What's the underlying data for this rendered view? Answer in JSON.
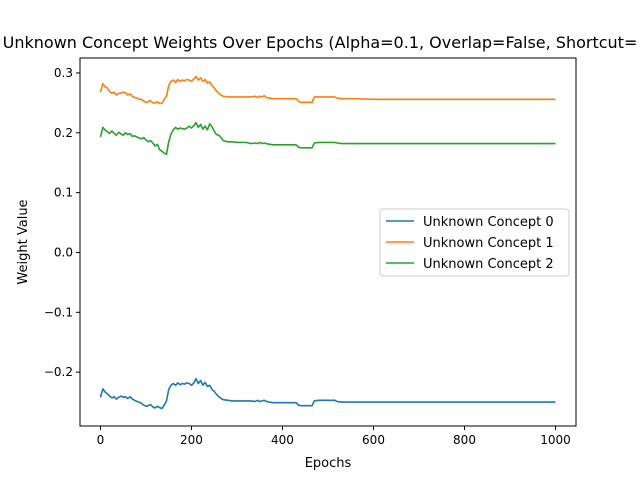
{
  "chart_data": {
    "type": "line",
    "title": "Unknown Concept Weights Over Epochs (Alpha=0.1, Overlap=False, Shortcut=",
    "xlabel": "Epochs",
    "ylabel": "Weight Value",
    "xlim": [
      -45,
      1045
    ],
    "ylim": [
      -0.29,
      0.325
    ],
    "xticks": [
      0,
      200,
      400,
      600,
      800,
      1000
    ],
    "yticks": [
      -0.2,
      -0.1,
      0.0,
      0.1,
      0.2,
      0.3
    ],
    "ytick_labels": [
      "−0.2",
      "−0.1",
      "0.0",
      "0.1",
      "0.2",
      "0.3"
    ],
    "grid": false,
    "legend": "center-right",
    "series": [
      {
        "name": "Unknown Concept 0",
        "color": "#1f77b4",
        "x": [
          0,
          5,
          10,
          15,
          20,
          25,
          30,
          35,
          40,
          45,
          50,
          55,
          60,
          65,
          70,
          75,
          80,
          85,
          90,
          95,
          100,
          105,
          110,
          115,
          120,
          125,
          130,
          135,
          140,
          145,
          150,
          155,
          160,
          165,
          170,
          175,
          180,
          185,
          190,
          195,
          200,
          205,
          210,
          215,
          220,
          225,
          230,
          235,
          240,
          245,
          250,
          255,
          260,
          265,
          270,
          280,
          290,
          300,
          310,
          320,
          330,
          340,
          345,
          350,
          355,
          360,
          365,
          370,
          380,
          390,
          400,
          410,
          420,
          430,
          435,
          440,
          450,
          460,
          465,
          470,
          480,
          490,
          500,
          510,
          515,
          520,
          530,
          540,
          560,
          600,
          700,
          800,
          900,
          1000
        ],
        "y": [
          -0.242,
          -0.228,
          -0.233,
          -0.236,
          -0.24,
          -0.243,
          -0.241,
          -0.245,
          -0.242,
          -0.24,
          -0.242,
          -0.241,
          -0.244,
          -0.241,
          -0.245,
          -0.247,
          -0.249,
          -0.25,
          -0.252,
          -0.255,
          -0.257,
          -0.256,
          -0.254,
          -0.258,
          -0.26,
          -0.257,
          -0.259,
          -0.261,
          -0.255,
          -0.248,
          -0.229,
          -0.222,
          -0.219,
          -0.222,
          -0.218,
          -0.221,
          -0.219,
          -0.22,
          -0.218,
          -0.219,
          -0.222,
          -0.218,
          -0.211,
          -0.219,
          -0.214,
          -0.222,
          -0.217,
          -0.224,
          -0.222,
          -0.229,
          -0.232,
          -0.237,
          -0.241,
          -0.244,
          -0.246,
          -0.247,
          -0.248,
          -0.248,
          -0.248,
          -0.248,
          -0.248,
          -0.249,
          -0.247,
          -0.249,
          -0.248,
          -0.247,
          -0.249,
          -0.25,
          -0.251,
          -0.251,
          -0.251,
          -0.251,
          -0.251,
          -0.251,
          -0.255,
          -0.256,
          -0.256,
          -0.256,
          -0.256,
          -0.248,
          -0.247,
          -0.247,
          -0.247,
          -0.247,
          -0.247,
          -0.249,
          -0.25,
          -0.25,
          -0.25,
          -0.25,
          -0.25,
          -0.25,
          -0.25,
          -0.25
        ]
      },
      {
        "name": "Unknown Concept 1",
        "color": "#ff7f0e",
        "x": [
          0,
          5,
          10,
          15,
          20,
          25,
          30,
          35,
          40,
          45,
          50,
          55,
          60,
          65,
          70,
          75,
          80,
          85,
          90,
          95,
          100,
          105,
          110,
          115,
          120,
          125,
          130,
          135,
          140,
          145,
          150,
          155,
          160,
          165,
          170,
          175,
          180,
          185,
          190,
          195,
          200,
          205,
          210,
          215,
          220,
          225,
          230,
          235,
          240,
          245,
          250,
          255,
          260,
          265,
          270,
          280,
          290,
          300,
          310,
          320,
          330,
          340,
          345,
          350,
          355,
          360,
          365,
          370,
          380,
          390,
          400,
          410,
          420,
          430,
          435,
          440,
          450,
          460,
          465,
          470,
          480,
          490,
          500,
          510,
          515,
          520,
          530,
          540,
          560,
          600,
          700,
          800,
          900,
          1000
        ],
        "y": [
          0.268,
          0.282,
          0.277,
          0.275,
          0.269,
          0.266,
          0.268,
          0.263,
          0.266,
          0.266,
          0.268,
          0.267,
          0.263,
          0.265,
          0.261,
          0.259,
          0.258,
          0.256,
          0.256,
          0.253,
          0.251,
          0.252,
          0.254,
          0.25,
          0.25,
          0.252,
          0.249,
          0.249,
          0.256,
          0.261,
          0.279,
          0.286,
          0.288,
          0.284,
          0.289,
          0.286,
          0.288,
          0.287,
          0.289,
          0.288,
          0.286,
          0.29,
          0.294,
          0.288,
          0.292,
          0.286,
          0.289,
          0.283,
          0.285,
          0.279,
          0.275,
          0.27,
          0.266,
          0.263,
          0.261,
          0.26,
          0.26,
          0.26,
          0.26,
          0.26,
          0.26,
          0.261,
          0.259,
          0.261,
          0.26,
          0.262,
          0.259,
          0.258,
          0.257,
          0.257,
          0.257,
          0.257,
          0.257,
          0.257,
          0.253,
          0.251,
          0.251,
          0.251,
          0.251,
          0.26,
          0.26,
          0.26,
          0.26,
          0.26,
          0.26,
          0.258,
          0.257,
          0.257,
          0.257,
          0.256,
          0.256,
          0.256,
          0.256,
          0.256
        ]
      },
      {
        "name": "Unknown Concept 2",
        "color": "#2ca02c",
        "x": [
          0,
          5,
          10,
          15,
          20,
          25,
          30,
          35,
          40,
          45,
          50,
          55,
          60,
          65,
          70,
          75,
          80,
          85,
          90,
          95,
          100,
          105,
          110,
          115,
          120,
          125,
          130,
          135,
          140,
          145,
          150,
          155,
          160,
          165,
          170,
          175,
          180,
          185,
          190,
          195,
          200,
          205,
          210,
          215,
          220,
          225,
          230,
          235,
          240,
          245,
          250,
          255,
          260,
          265,
          270,
          280,
          290,
          300,
          310,
          320,
          330,
          340,
          345,
          350,
          355,
          360,
          365,
          370,
          380,
          390,
          400,
          410,
          420,
          430,
          435,
          440,
          450,
          460,
          465,
          470,
          480,
          490,
          500,
          510,
          515,
          520,
          530,
          540,
          560,
          600,
          700,
          800,
          900,
          1000
        ],
        "y": [
          0.193,
          0.209,
          0.205,
          0.202,
          0.199,
          0.203,
          0.199,
          0.196,
          0.201,
          0.198,
          0.196,
          0.2,
          0.197,
          0.199,
          0.194,
          0.195,
          0.193,
          0.191,
          0.19,
          0.192,
          0.188,
          0.185,
          0.187,
          0.183,
          0.178,
          0.181,
          0.172,
          0.169,
          0.166,
          0.164,
          0.185,
          0.198,
          0.205,
          0.209,
          0.206,
          0.208,
          0.207,
          0.206,
          0.208,
          0.211,
          0.208,
          0.212,
          0.217,
          0.209,
          0.214,
          0.206,
          0.211,
          0.205,
          0.215,
          0.21,
          0.203,
          0.197,
          0.196,
          0.192,
          0.187,
          0.185,
          0.185,
          0.184,
          0.184,
          0.184,
          0.182,
          0.183,
          0.182,
          0.184,
          0.182,
          0.183,
          0.182,
          0.181,
          0.18,
          0.18,
          0.18,
          0.18,
          0.18,
          0.18,
          0.176,
          0.175,
          0.175,
          0.175,
          0.175,
          0.183,
          0.184,
          0.184,
          0.184,
          0.184,
          0.184,
          0.183,
          0.182,
          0.182,
          0.182,
          0.182,
          0.182,
          0.182,
          0.182,
          0.182
        ]
      }
    ]
  }
}
